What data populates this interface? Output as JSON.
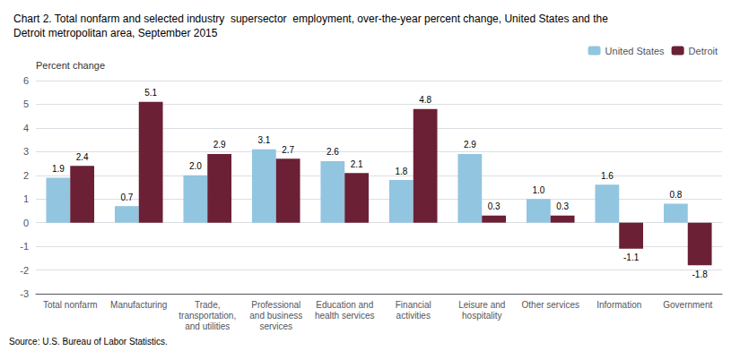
{
  "chart_data": {
    "type": "bar",
    "title": "Chart 2. Total nonfarm and selected industry  supersector  employment, over-the-year percent change, United States and the\nDetroit metropolitan area, September 2015",
    "ylabel": "Percent change",
    "annotations": [
      "Source: U.S. Bureau of Labor Statistics."
    ],
    "categories": [
      "Total nonfarm",
      "Manufacturing",
      "Trade,\ntransportation,\nand utilities",
      "Professional\nand business\nservices",
      "Education and\nhealth services",
      "Financial\nactivities",
      "Leisure and\nhospitality",
      "Other services",
      "Information",
      "Government"
    ],
    "series": [
      {
        "name": "United States",
        "color": "#92C5E0",
        "values": [
          1.9,
          0.7,
          2.0,
          3.1,
          2.6,
          1.8,
          2.9,
          1.0,
          1.6,
          0.8
        ],
        "value_labels": [
          "1.9",
          "0.7",
          "2.0",
          "3.1",
          "2.6",
          "1.8",
          "2.9",
          "1.0",
          "1.6",
          "0.8"
        ]
      },
      {
        "name": "Detroit",
        "color": "#6B2035",
        "values": [
          2.4,
          5.1,
          2.9,
          2.7,
          2.1,
          4.8,
          0.3,
          0.3,
          -1.1,
          -1.8
        ],
        "value_labels": [
          "2.4",
          "5.1",
          "2.9",
          "2.7",
          "2.1",
          "4.8",
          "0.3",
          "0.3",
          "-1.1",
          "-1.8"
        ]
      }
    ],
    "ylim": [
      -3,
      6
    ],
    "yticks": [
      -3,
      -2,
      -1,
      0,
      1,
      2,
      3,
      4,
      5,
      6
    ],
    "grid": true,
    "legend": "upper right",
    "data_labels": true
  }
}
